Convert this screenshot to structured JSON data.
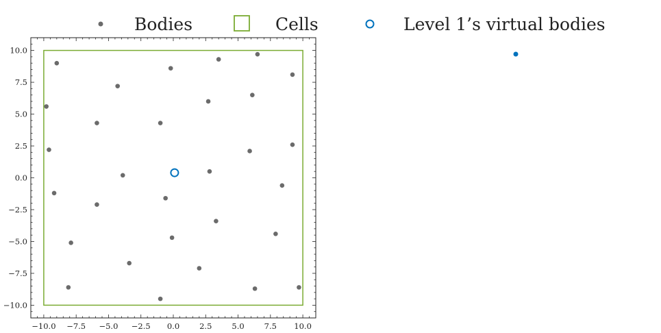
{
  "chart_data": {
    "type": "scatter",
    "title": "",
    "xlabel": "",
    "ylabel": "",
    "xlim": [
      -11,
      11
    ],
    "ylim": [
      -11,
      11
    ],
    "xticks": [
      -10.0,
      -7.5,
      -5.0,
      -2.5,
      0.0,
      2.5,
      5.0,
      7.5,
      10.0
    ],
    "yticks": [
      -10.0,
      -7.5,
      -5.0,
      -2.5,
      0.0,
      2.5,
      5.0,
      7.5,
      10.0
    ],
    "xtick_labels": [
      "−10.0",
      "−7.5",
      "−5.0",
      "−2.5",
      "0.0",
      "2.5",
      "5.0",
      "7.5",
      "10.0"
    ],
    "ytick_labels": [
      "−10.0",
      "−7.5",
      "−5.0",
      "−2.5",
      "0.0",
      "2.5",
      "5.0",
      "7.5",
      "10.0"
    ],
    "grid": false,
    "legend": {
      "placement": "top",
      "entries": [
        {
          "label": "Bodies",
          "marker": "dot"
        },
        {
          "label": "Cells",
          "marker": "square"
        },
        {
          "label": "Level 1’s virtual bodies",
          "marker": "open-circle"
        }
      ]
    },
    "colors": {
      "bodies": "#6b6b6b",
      "cells": "#7aab32",
      "virtual": "#0072bd",
      "axis": "#222222"
    },
    "series": [
      {
        "name": "Bodies",
        "points": [
          [
            -9.0,
            9.0
          ],
          [
            -0.2,
            8.6
          ],
          [
            3.5,
            9.3
          ],
          [
            6.5,
            9.7
          ],
          [
            9.2,
            8.1
          ],
          [
            -4.3,
            7.2
          ],
          [
            2.7,
            6.0
          ],
          [
            6.1,
            6.5
          ],
          [
            -9.8,
            5.6
          ],
          [
            -5.9,
            4.3
          ],
          [
            -1.0,
            4.3
          ],
          [
            -9.6,
            2.2
          ],
          [
            5.9,
            2.1
          ],
          [
            9.2,
            2.6
          ],
          [
            -3.9,
            0.2
          ],
          [
            2.8,
            0.5
          ],
          [
            8.4,
            -0.6
          ],
          [
            -9.2,
            -1.2
          ],
          [
            -0.6,
            -1.6
          ],
          [
            -5.9,
            -2.1
          ],
          [
            3.3,
            -3.4
          ],
          [
            7.9,
            -4.4
          ],
          [
            -7.9,
            -5.1
          ],
          [
            -0.1,
            -4.7
          ],
          [
            -3.4,
            -6.7
          ],
          [
            2.0,
            -7.1
          ],
          [
            -8.1,
            -8.6
          ],
          [
            6.3,
            -8.7
          ],
          [
            9.7,
            -8.6
          ],
          [
            -1.0,
            -9.5
          ]
        ]
      },
      {
        "name": "Cells",
        "rect": {
          "x0": -10.0,
          "y0": -10.0,
          "x1": 10.0,
          "y1": 10.0
        }
      },
      {
        "name": "Level 1’s virtual bodies",
        "points": [
          [
            0.1,
            0.4
          ]
        ]
      }
    ],
    "annotations": [
      {
        "label": "Level 1’s virtual bodies",
        "marker": "filled-dot",
        "note": "stray filled marker beside legend"
      }
    ]
  }
}
